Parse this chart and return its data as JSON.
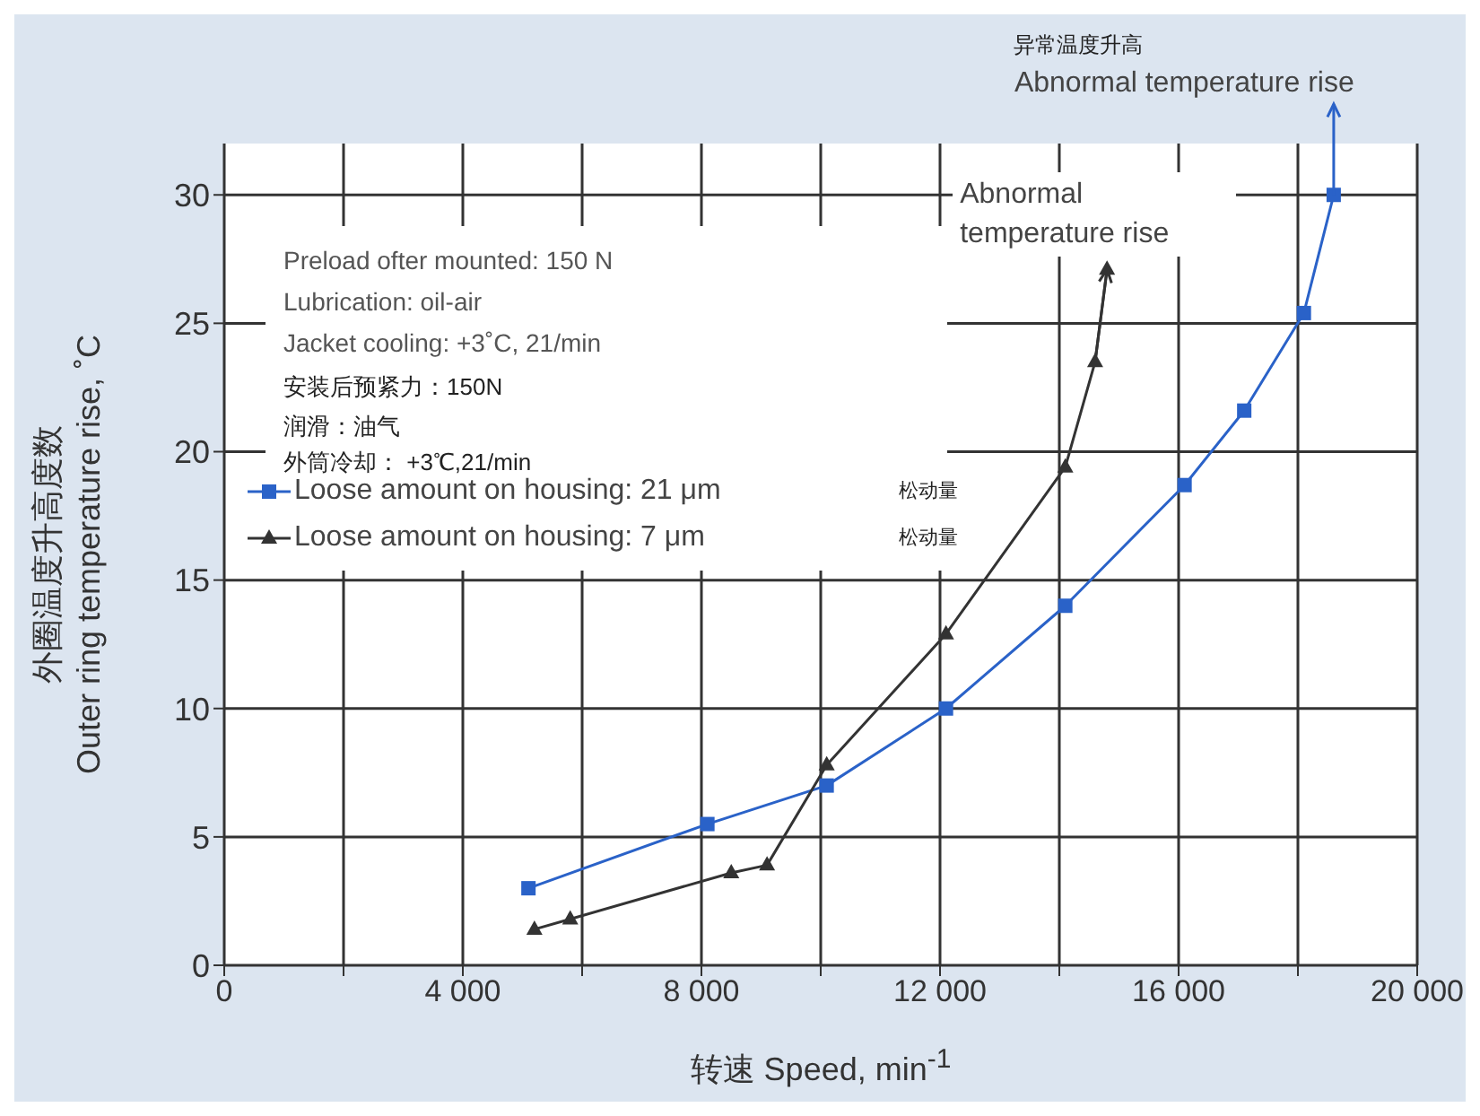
{
  "chart_data": {
    "type": "line",
    "xlabel": "转速 Speed, min$^{-1}$",
    "ylabel": "外圈温度升高度数\nOuter ring temperature rise, ˚C",
    "xlim": [
      0,
      20000
    ],
    "ylim": [
      0,
      32
    ],
    "xticks": [
      {
        "value": 0,
        "label": "0"
      },
      {
        "value": 2000,
        "label": null
      },
      {
        "value": 4000,
        "label": "4 000"
      },
      {
        "value": 6000,
        "label": null
      },
      {
        "value": 8000,
        "label": "8 000"
      },
      {
        "value": 10000,
        "label": null
      },
      {
        "value": 12000,
        "label": "12 000"
      },
      {
        "value": 14000,
        "label": null
      },
      {
        "value": 16000,
        "label": "16 000"
      },
      {
        "value": 18000,
        "label": null
      },
      {
        "value": 20000,
        "label": "20 000"
      }
    ],
    "yticks": [
      0,
      5,
      10,
      15,
      20,
      25,
      30
    ],
    "grid": true,
    "legend": "top left",
    "series": [
      {
        "name": "Loose amount on housing: 21 μm",
        "color": "#2a62c8",
        "marker": "square",
        "x": [
          5100,
          8100,
          10100,
          12100,
          14100,
          16100,
          17100,
          18100,
          18600
        ],
        "values": [
          3,
          5.5,
          7,
          10,
          14,
          18.7,
          21.6,
          25.4,
          30
        ]
      },
      {
        "name": "Loose amount on housing: 7 μm",
        "color": "#333333",
        "marker": "triangle",
        "x": [
          5200,
          5800,
          8500,
          9100,
          10100,
          12100,
          14100,
          14600,
          14800
        ],
        "values": [
          1.4,
          1.8,
          3.6,
          3.9,
          7.8,
          12.9,
          19.4,
          23.5,
          27.1
        ]
      }
    ],
    "annotations": [
      "Preload ofter mounted: 150 N",
      "Lubrication: oil-air",
      "Jacket cooling: +3˚C, 21/min",
      "安装后预紧力：150N",
      "润滑：油气",
      "外筒冷却： +3℃,21/min",
      {
        "text": "Abnormal temperature rise",
        "x": 14800,
        "y": 27.1
      },
      "异常温度升高",
      {
        "text": "Abnormal temperature rise",
        "x": 18600,
        "y": 30
      },
      "松动量",
      "松动量"
    ]
  }
}
